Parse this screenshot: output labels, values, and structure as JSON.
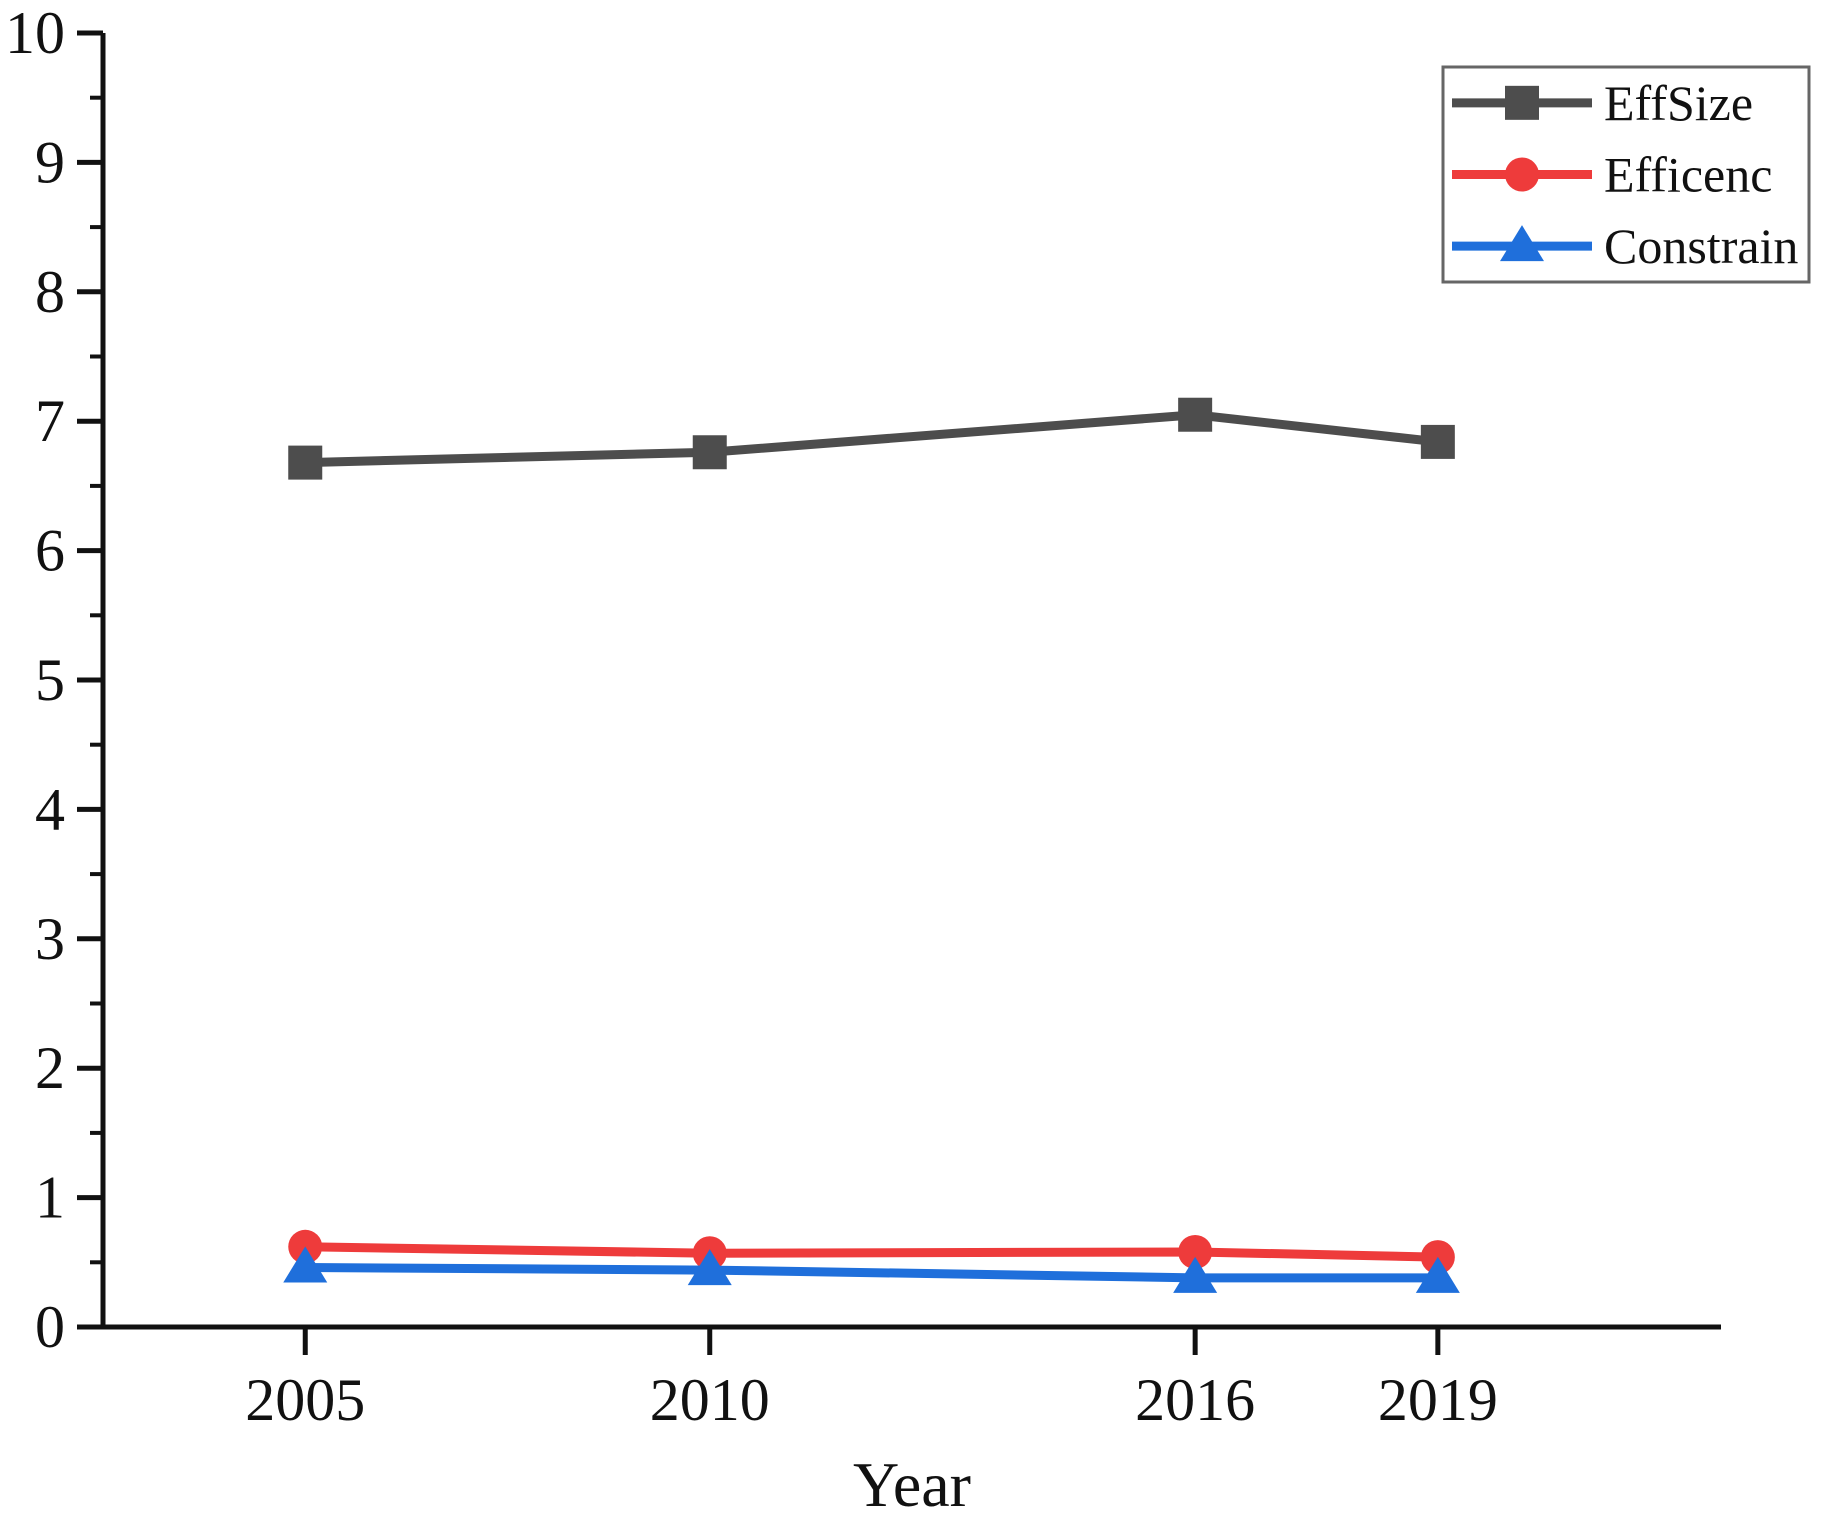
{
  "chart_data": {
    "type": "line",
    "title": "",
    "xlabel": "Year",
    "ylabel": "",
    "x": [
      2005,
      2010,
      2016,
      2019
    ],
    "x_tick_labels": [
      "2005",
      "2010",
      "2016",
      "2019"
    ],
    "xlim": [
      2002.5,
      2022.5
    ],
    "ylim": [
      0,
      10
    ],
    "y_major_step": 1,
    "y_minor_step": 0.5,
    "grid": false,
    "legend_position": "top-right",
    "axis_color": "#111111",
    "series": [
      {
        "name": "EffSize",
        "color": "#4d4d4d",
        "marker": "square",
        "values": [
          6.68,
          6.76,
          7.05,
          6.84
        ]
      },
      {
        "name": "Efficenc",
        "color": "#ee3b3b",
        "marker": "circle",
        "values": [
          0.62,
          0.57,
          0.58,
          0.54
        ]
      },
      {
        "name": "Constrain",
        "color": "#1f6fdb",
        "marker": "triangle",
        "values": [
          0.46,
          0.44,
          0.38,
          0.38
        ]
      }
    ]
  }
}
